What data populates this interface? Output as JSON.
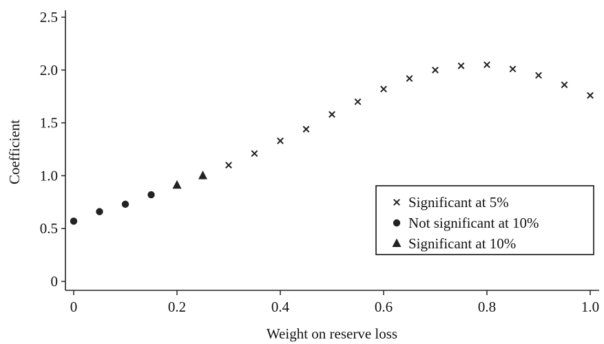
{
  "chart_data": {
    "type": "scatter",
    "xlabel": "Weight on reserve loss",
    "ylabel": "Coefficient",
    "xlim": [
      -0.02,
      1.02
    ],
    "ylim": [
      -0.08,
      2.6
    ],
    "x_ticks": [
      0,
      0.2,
      0.4,
      0.6,
      0.8,
      1.0
    ],
    "x_tick_labels": [
      "0",
      "0.2",
      "0.4",
      "0.6",
      "0.8",
      "1.0"
    ],
    "y_ticks": [
      0,
      0.5,
      1.0,
      1.5,
      2.0,
      2.5
    ],
    "y_tick_labels": [
      "0",
      "0.5",
      "1.0",
      "1.5",
      "2.0",
      "2.5"
    ],
    "grid": false,
    "legend_position": "lower-right",
    "series": [
      {
        "name": "Significant at 5%",
        "marker": "cross",
        "color": "#222222",
        "x": [
          0.3,
          0.35,
          0.4,
          0.45,
          0.5,
          0.55,
          0.6,
          0.65,
          0.7,
          0.75,
          0.8,
          0.85,
          0.9,
          0.95,
          1.0
        ],
        "y": [
          1.1,
          1.21,
          1.33,
          1.44,
          1.58,
          1.7,
          1.82,
          1.92,
          2.0,
          2.04,
          2.05,
          2.01,
          1.95,
          1.86,
          1.76
        ]
      },
      {
        "name": "Not significant at 10%",
        "marker": "circle",
        "color": "#222222",
        "x": [
          0,
          0.05,
          0.1,
          0.15
        ],
        "y": [
          0.57,
          0.66,
          0.73,
          0.82
        ]
      },
      {
        "name": "Significant at 10%",
        "marker": "triangle",
        "color": "#222222",
        "x": [
          0.2,
          0.25
        ],
        "y": [
          0.91,
          1.0
        ]
      }
    ]
  }
}
